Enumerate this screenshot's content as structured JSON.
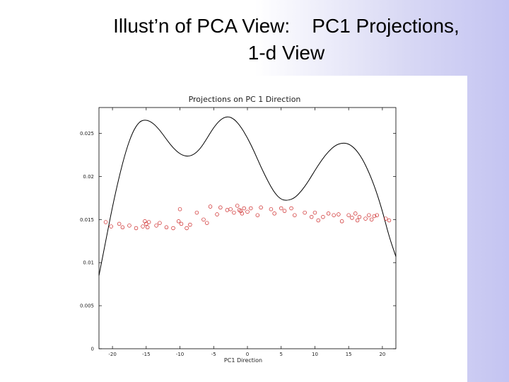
{
  "slide": {
    "title_line1": "Illust’n of PCA View:    PC1 Projections,",
    "title_line2": "1-d View"
  },
  "colors": {
    "curve": "#000000",
    "points": "#cc2222",
    "axis": "#000000"
  },
  "chart_data": {
    "type": "scatter",
    "title": "Projections on PC 1 Direction",
    "xlabel": "PC1 Direction",
    "ylabel": "",
    "xlim": [
      -22,
      22
    ],
    "ylim": [
      0,
      0.028
    ],
    "grid": false,
    "xticks": [
      -20,
      -15,
      -10,
      -5,
      0,
      5,
      10,
      15,
      20
    ],
    "xtick_labels": [
      "-20",
      "-15",
      "-10",
      "-5",
      "0",
      "5",
      "10",
      "15",
      "20"
    ],
    "yticks": [
      0,
      0.005,
      0.01,
      0.015,
      0.02,
      0.025
    ],
    "ytick_labels": [
      "0",
      "0.005",
      "0.01",
      "0.015",
      "0.02",
      "0.025"
    ],
    "series": [
      {
        "kind": "line",
        "x": [
          -22,
          -21,
          -20,
          -19,
          -18,
          -17,
          -16,
          -15,
          -14,
          -13,
          -12,
          -11,
          -10,
          -9,
          -8,
          -7,
          -6,
          -5,
          -4,
          -3,
          -2,
          -1,
          0,
          1,
          2,
          3,
          4,
          5,
          6,
          7,
          8,
          9,
          10,
          11,
          12,
          13,
          14,
          15,
          16,
          17,
          18,
          19,
          20,
          21,
          22
        ],
        "y": [
          0.0085,
          0.0125,
          0.0165,
          0.02,
          0.023,
          0.0252,
          0.0264,
          0.0266,
          0.0262,
          0.0254,
          0.0243,
          0.0233,
          0.0226,
          0.0223,
          0.0225,
          0.0232,
          0.0244,
          0.0257,
          0.0266,
          0.027,
          0.0267,
          0.0258,
          0.0245,
          0.0229,
          0.0211,
          0.0195,
          0.0181,
          0.0173,
          0.0172,
          0.0175,
          0.0183,
          0.0194,
          0.0207,
          0.0219,
          0.0229,
          0.0236,
          0.0239,
          0.0238,
          0.0232,
          0.0221,
          0.0205,
          0.0185,
          0.016,
          0.013,
          0.0107
        ]
      },
      {
        "kind": "points",
        "x": [
          -21,
          -20.2,
          -19,
          -18.5,
          -17.5,
          -16.5,
          -15.5,
          -15.2,
          -15,
          -14.8,
          -14.6,
          -13.5,
          -13,
          -12,
          -11,
          -10.2,
          -10,
          -9.8,
          -9,
          -8.5,
          -7.5,
          -6.5,
          -6,
          -5.5,
          -4.5,
          -4,
          -3,
          -2.5,
          -2,
          -1.5,
          -1.2,
          -1,
          -0.8,
          -0.5,
          0,
          0.5,
          1.5,
          2,
          3.5,
          4,
          5,
          5.5,
          6.5,
          7,
          8.5,
          9.5,
          10,
          10.5,
          11.2,
          12,
          12.8,
          13.5,
          14,
          15,
          15.5,
          16,
          16.3,
          16.6,
          17.5,
          18,
          18.4,
          18.8,
          19.2,
          20.5,
          21
        ],
        "y": [
          0.0147,
          0.0142,
          0.0145,
          0.0141,
          0.0143,
          0.014,
          0.0142,
          0.0148,
          0.0145,
          0.0141,
          0.0147,
          0.0143,
          0.0146,
          0.0141,
          0.014,
          0.0148,
          0.0162,
          0.0145,
          0.014,
          0.0144,
          0.0158,
          0.015,
          0.0146,
          0.0165,
          0.0156,
          0.0164,
          0.0161,
          0.0162,
          0.0158,
          0.0166,
          0.0161,
          0.016,
          0.0157,
          0.0163,
          0.0159,
          0.0163,
          0.0155,
          0.0164,
          0.0162,
          0.0157,
          0.0163,
          0.016,
          0.0163,
          0.0155,
          0.0158,
          0.0153,
          0.0158,
          0.0149,
          0.0153,
          0.0157,
          0.0155,
          0.0156,
          0.0148,
          0.0155,
          0.0152,
          0.0157,
          0.0149,
          0.0153,
          0.0151,
          0.0155,
          0.015,
          0.0154,
          0.0155,
          0.0151,
          0.0149
        ]
      }
    ]
  }
}
